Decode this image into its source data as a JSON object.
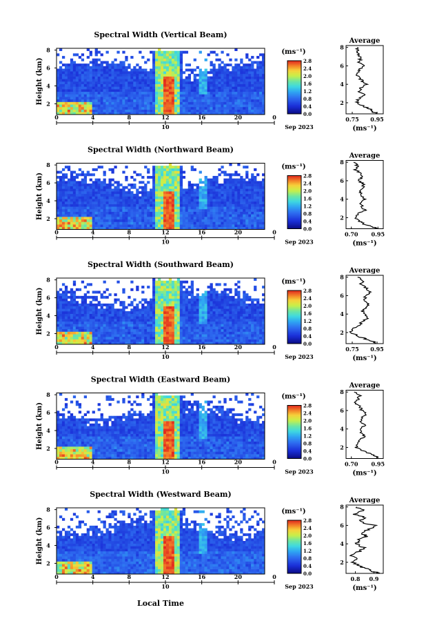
{
  "figure": {
    "xlabel": "Local Time",
    "date_label": "Sep 2023",
    "colorbar_unit": "(ms⁻¹)",
    "avg_title": "Average",
    "avg_xlabel": "(ms⁻¹)",
    "height_label": "Height (km)"
  },
  "chart_data": [
    {
      "type": "heatmap",
      "title": "Spectral Width (Vertical Beam)",
      "ylabel": "Height (km)",
      "xlabel": "Local Time",
      "x_ticks": [
        "0",
        "4",
        "8",
        "12",
        "16",
        "20",
        "0"
      ],
      "day_label": "10",
      "y_ticks": [
        "2",
        "4",
        "6",
        "8"
      ],
      "xlim": [
        0,
        24
      ],
      "ylim": [
        0.8,
        8.2
      ],
      "colorbar": {
        "ticks": [
          "0.0",
          "0.4",
          "0.8",
          "1.2",
          "1.6",
          "2.0",
          "2.4",
          "2.8"
        ],
        "range": [
          0,
          2.8
        ],
        "unit": "(ms⁻¹)"
      },
      "average_profile": {
        "title": "Average",
        "xlabel": "(ms⁻¹)",
        "x_ticks": [
          "0.75",
          "0.95"
        ],
        "xlim": [
          0.7,
          1.0
        ],
        "x": [
          0.78,
          0.8,
          0.79,
          0.82,
          0.8,
          0.84,
          0.81,
          0.79,
          0.8,
          0.83,
          0.86,
          0.82,
          0.8,
          0.85,
          0.8,
          0.79,
          0.84,
          0.9,
          0.92,
          0.95
        ],
        "y": [
          8.0,
          7.6,
          7.2,
          6.8,
          6.4,
          6.0,
          5.6,
          5.2,
          4.8,
          4.4,
          4.0,
          3.6,
          3.2,
          2.8,
          2.4,
          2.0,
          1.6,
          1.3,
          1.0,
          0.8
        ]
      }
    },
    {
      "type": "heatmap",
      "title": "Spectral Width (Northward Beam)",
      "ylabel": "Height (km)",
      "xlabel": "Local Time",
      "x_ticks": [
        "0",
        "4",
        "8",
        "12",
        "16",
        "20",
        "0"
      ],
      "day_label": "10",
      "y_ticks": [
        "2",
        "4",
        "6",
        "8"
      ],
      "xlim": [
        0,
        24
      ],
      "ylim": [
        0.8,
        8.2
      ],
      "colorbar": {
        "ticks": [
          "0.0",
          "0.4",
          "0.8",
          "1.2",
          "1.6",
          "2.0",
          "2.4",
          "2.8"
        ],
        "range": [
          0,
          2.8
        ],
        "unit": "(ms⁻¹)"
      },
      "average_profile": {
        "title": "Average",
        "xlabel": "(ms⁻¹)",
        "x_ticks": [
          "0.70",
          "0.95"
        ],
        "xlim": [
          0.65,
          1.0
        ],
        "x": [
          0.72,
          0.76,
          0.74,
          0.78,
          0.8,
          0.77,
          0.82,
          0.8,
          0.78,
          0.8,
          0.82,
          0.79,
          0.8,
          0.83,
          0.76,
          0.74,
          0.78,
          0.82,
          0.9,
          0.94
        ],
        "y": [
          8.0,
          7.6,
          7.2,
          6.8,
          6.4,
          6.0,
          5.6,
          5.2,
          4.8,
          4.4,
          4.0,
          3.6,
          3.2,
          2.8,
          2.4,
          2.0,
          1.6,
          1.3,
          1.0,
          0.8
        ]
      }
    },
    {
      "type": "heatmap",
      "title": "Spectral Width (Southward Beam)",
      "ylabel": "Height (km)",
      "xlabel": "Local Time",
      "x_ticks": [
        "0",
        "4",
        "8",
        "12",
        "16",
        "20",
        "0"
      ],
      "day_label": "10",
      "y_ticks": [
        "2",
        "4",
        "6",
        "8"
      ],
      "xlim": [
        0,
        24
      ],
      "ylim": [
        0.8,
        8.2
      ],
      "colorbar": {
        "ticks": [
          "0.0",
          "0.4",
          "0.8",
          "1.2",
          "1.6",
          "2.0",
          "2.4",
          "2.8"
        ],
        "range": [
          0,
          2.8
        ],
        "unit": "(ms⁻¹)"
      },
      "average_profile": {
        "title": "Average",
        "xlabel": "(ms⁻¹)",
        "x_ticks": [
          "0.75",
          "0.95"
        ],
        "xlim": [
          0.7,
          1.0
        ],
        "x": [
          0.8,
          0.84,
          0.82,
          0.86,
          0.9,
          0.87,
          0.84,
          0.88,
          0.86,
          0.83,
          0.85,
          0.88,
          0.84,
          0.8,
          0.76,
          0.74,
          0.8,
          0.86,
          0.92,
          0.95
        ],
        "y": [
          8.0,
          7.6,
          7.2,
          6.8,
          6.4,
          6.0,
          5.6,
          5.2,
          4.8,
          4.4,
          4.0,
          3.6,
          3.2,
          2.8,
          2.4,
          2.0,
          1.6,
          1.3,
          1.0,
          0.8
        ]
      }
    },
    {
      "type": "heatmap",
      "title": "Spectral Width (Eastward Beam)",
      "ylabel": "Height (km)",
      "xlabel": "Local Time",
      "x_ticks": [
        "0",
        "4",
        "8",
        "12",
        "16",
        "20",
        "0"
      ],
      "day_label": "10",
      "y_ticks": [
        "2",
        "4",
        "6",
        "8"
      ],
      "xlim": [
        0,
        24
      ],
      "ylim": [
        0.8,
        8.2
      ],
      "colorbar": {
        "ticks": [
          "0.0",
          "0.4",
          "0.8",
          "1.2",
          "1.6",
          "2.0",
          "2.4",
          "2.8"
        ],
        "range": [
          0,
          2.8
        ],
        "unit": "(ms⁻¹)"
      },
      "average_profile": {
        "title": "Average",
        "xlabel": "(ms⁻¹)",
        "x_ticks": [
          "0.70",
          "0.95"
        ],
        "xlim": [
          0.65,
          1.0
        ],
        "x": [
          0.74,
          0.78,
          0.76,
          0.74,
          0.78,
          0.8,
          0.84,
          0.8,
          0.78,
          0.82,
          0.8,
          0.79,
          0.82,
          0.78,
          0.76,
          0.74,
          0.82,
          0.88,
          0.93,
          0.95
        ],
        "y": [
          8.0,
          7.6,
          7.2,
          6.8,
          6.4,
          6.0,
          5.6,
          5.2,
          4.8,
          4.4,
          4.0,
          3.6,
          3.2,
          2.8,
          2.4,
          2.0,
          1.6,
          1.3,
          1.0,
          0.8
        ]
      }
    },
    {
      "type": "heatmap",
      "title": "Spectral Width (Westward Beam)",
      "ylabel": "Height (km)",
      "xlabel": "Local Time",
      "x_ticks": [
        "0",
        "4",
        "8",
        "12",
        "16",
        "20",
        "0"
      ],
      "day_label": "10",
      "y_ticks": [
        "2",
        "4",
        "6",
        "8"
      ],
      "xlim": [
        0,
        24
      ],
      "ylim": [
        0.8,
        8.2
      ],
      "colorbar": {
        "ticks": [
          "0.0",
          "0.4",
          "0.8",
          "1.2",
          "1.6",
          "2.0",
          "2.4",
          "2.8"
        ],
        "range": [
          0,
          2.8
        ],
        "unit": "(ms⁻¹)"
      },
      "average_profile": {
        "title": "Average",
        "xlabel": "(ms⁻¹)",
        "x_ticks": [
          "0.8",
          "0.9"
        ],
        "xlim": [
          0.75,
          0.95
        ],
        "x": [
          0.8,
          0.84,
          0.8,
          0.86,
          0.82,
          0.9,
          0.88,
          0.84,
          0.86,
          0.82,
          0.8,
          0.84,
          0.82,
          0.78,
          0.8,
          0.78,
          0.82,
          0.86,
          0.9,
          0.93
        ],
        "y": [
          8.0,
          7.6,
          7.2,
          6.8,
          6.4,
          6.0,
          5.6,
          5.2,
          4.8,
          4.4,
          4.0,
          3.6,
          3.2,
          2.8,
          2.4,
          2.0,
          1.6,
          1.3,
          1.0,
          0.8
        ]
      }
    }
  ]
}
